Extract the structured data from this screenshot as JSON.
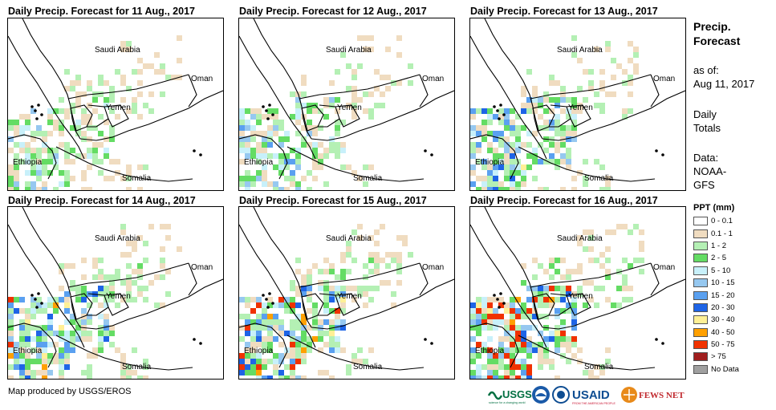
{
  "panels": [
    {
      "title": "Daily Precip. Forecast for 11 Aug., 2017"
    },
    {
      "title": "Daily Precip. Forecast for 12 Aug., 2017"
    },
    {
      "title": "Daily Precip. Forecast for 13 Aug., 2017"
    },
    {
      "title": "Daily Precip. Forecast for 14 Aug., 2017"
    },
    {
      "title": "Daily Precip. Forecast for 15 Aug., 2017"
    },
    {
      "title": "Daily Precip. Forecast for 16 Aug., 2017"
    }
  ],
  "places": {
    "saudi": "Saudi Arabia",
    "oman": "Oman",
    "yemen": "Yemen",
    "ethiopia": "Ethiopia",
    "somalia": "Somalia"
  },
  "sidebar": {
    "title_line1": "Precip.",
    "title_line2": "Forecast",
    "asof_label": "as of:",
    "asof_date": "Aug 11, 2017",
    "daily_line1": "Daily",
    "daily_line2": "Totals",
    "data_label": "Data:",
    "data_line1": "NOAA-",
    "data_line2": "GFS"
  },
  "legend": {
    "title": "PPT (mm)",
    "items": [
      {
        "label": "0 - 0.1",
        "color": "#ffffff"
      },
      {
        "label": "0.1 - 1",
        "color": "#f0dcc0"
      },
      {
        "label": "1 - 2",
        "color": "#b4f0b4"
      },
      {
        "label": "2 - 5",
        "color": "#64dc64"
      },
      {
        "label": "5 - 10",
        "color": "#c8f0fa"
      },
      {
        "label": "10 - 15",
        "color": "#96c8f0"
      },
      {
        "label": "15 - 20",
        "color": "#5aa0f0"
      },
      {
        "label": "20 - 30",
        "color": "#1e64e6"
      },
      {
        "label": "30 - 40",
        "color": "#fff096"
      },
      {
        "label": "40 - 50",
        "color": "#ffa000"
      },
      {
        "label": "50 - 75",
        "color": "#f03200"
      },
      {
        "label": "> 75",
        "color": "#a01e1e"
      },
      {
        "label": "No Data",
        "color": "#a0a0a0"
      }
    ]
  },
  "credit": "Map produced by USGS/EROS",
  "logos": {
    "usgs": "USGS",
    "usgs_tagline": "science for a changing world",
    "usaid": "USAID",
    "usaid_tagline": "FROM THE AMERICAN PEOPLE",
    "fewsnet": "FEWS NET"
  }
}
